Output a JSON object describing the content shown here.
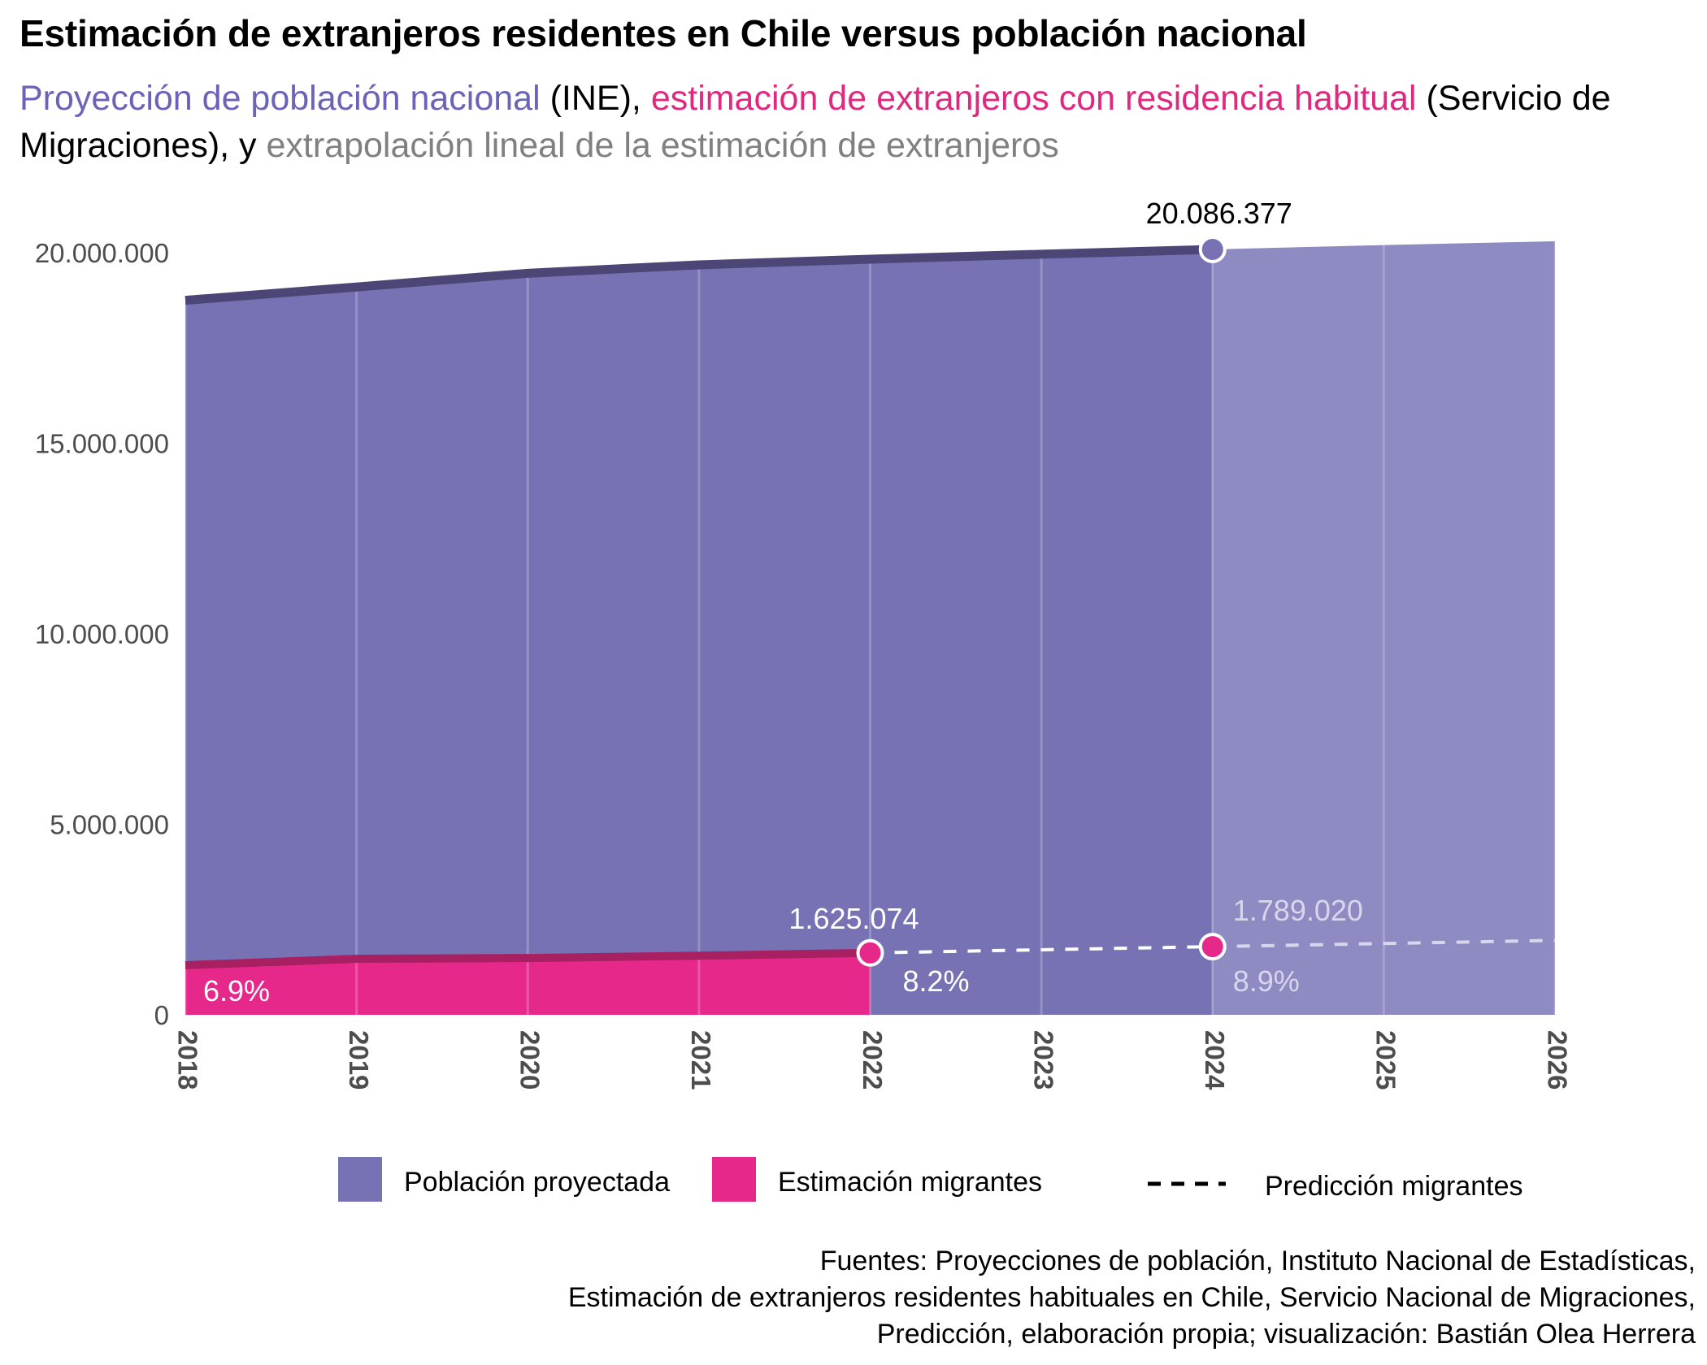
{
  "title": "Estimación de extranjeros residentes en Chile versus población nacional",
  "subtitle": {
    "part1": "Proyección de población nacional",
    "part2": " (INE), ",
    "part3": "estimación de extranjeros con residencia habitual",
    "part4": " (Servicio de Migraciones), y ",
    "part5": "extrapolación lineal de la estimación de extranjeros"
  },
  "colors": {
    "population": "#7672b4",
    "population_line": "#4b4676",
    "population_forecast": "#8e8ac2",
    "migrants": "#e6288a",
    "migrants_line": "#a81f62",
    "forecast_text": "#808080",
    "subtitle_purple": "#6a63b8",
    "subtitle_pink": "#e0287f"
  },
  "chart_data": {
    "type": "area",
    "x": [
      2018,
      2019,
      2020,
      2021,
      2022,
      2023,
      2024,
      2025,
      2026
    ],
    "ylim": [
      0,
      20000000
    ],
    "yticks": [
      0,
      5000000,
      10000000,
      15000000,
      20000000
    ],
    "ytick_labels": [
      "0",
      "5.000.000",
      "10.000.000",
      "15.000.000",
      "20.000.000"
    ],
    "xtick_labels": [
      "2018",
      "2019",
      "2020",
      "2021",
      "2022",
      "2023",
      "2024",
      "2025",
      "2026"
    ],
    "grid": true,
    "legend_position": "bottom",
    "series": [
      {
        "name": "Población proyectada",
        "x": [
          2018,
          2019,
          2020,
          2021,
          2022,
          2023,
          2024,
          2025,
          2026
        ],
        "values": [
          18750000,
          19100000,
          19460000,
          19680000,
          19830000,
          19960000,
          20086377,
          20200000,
          20300000
        ]
      },
      {
        "name": "Estimación migrantes",
        "x": [
          2018,
          2019,
          2020,
          2021,
          2022
        ],
        "values": [
          1300000,
          1470000,
          1490000,
          1550000,
          1625074
        ]
      },
      {
        "name": "Predicción migrantes",
        "x": [
          2022,
          2023,
          2024,
          2025,
          2026
        ],
        "values": [
          1625074,
          1707047,
          1789020,
          1870993,
          1952966
        ]
      }
    ],
    "annotations": [
      {
        "text": "20.086.377",
        "x": 2024,
        "y": 20086377
      },
      {
        "text": "1.625.074",
        "x": 2022,
        "y": 1625074
      },
      {
        "text": "1.789.020",
        "x": 2024,
        "y": 1789020
      },
      {
        "text": "6.9%",
        "x": 2018
      },
      {
        "text": "8.2%",
        "x": 2022
      },
      {
        "text": "8.9%",
        "x": 2024
      }
    ]
  },
  "legend": {
    "population": "Población proyectada",
    "migrants": "Estimación migrantes",
    "prediction": "Predicción migrantes"
  },
  "caption": {
    "line1": "Fuentes: Proyecciones de población, Instituto Nacional de Estadísticas,",
    "line2": "Estimación de extranjeros residentes habituales en Chile, Servicio Nacional de Migraciones,",
    "line3": "Predicción, elaboración propia; visualización: Bastián Olea Herrera"
  }
}
